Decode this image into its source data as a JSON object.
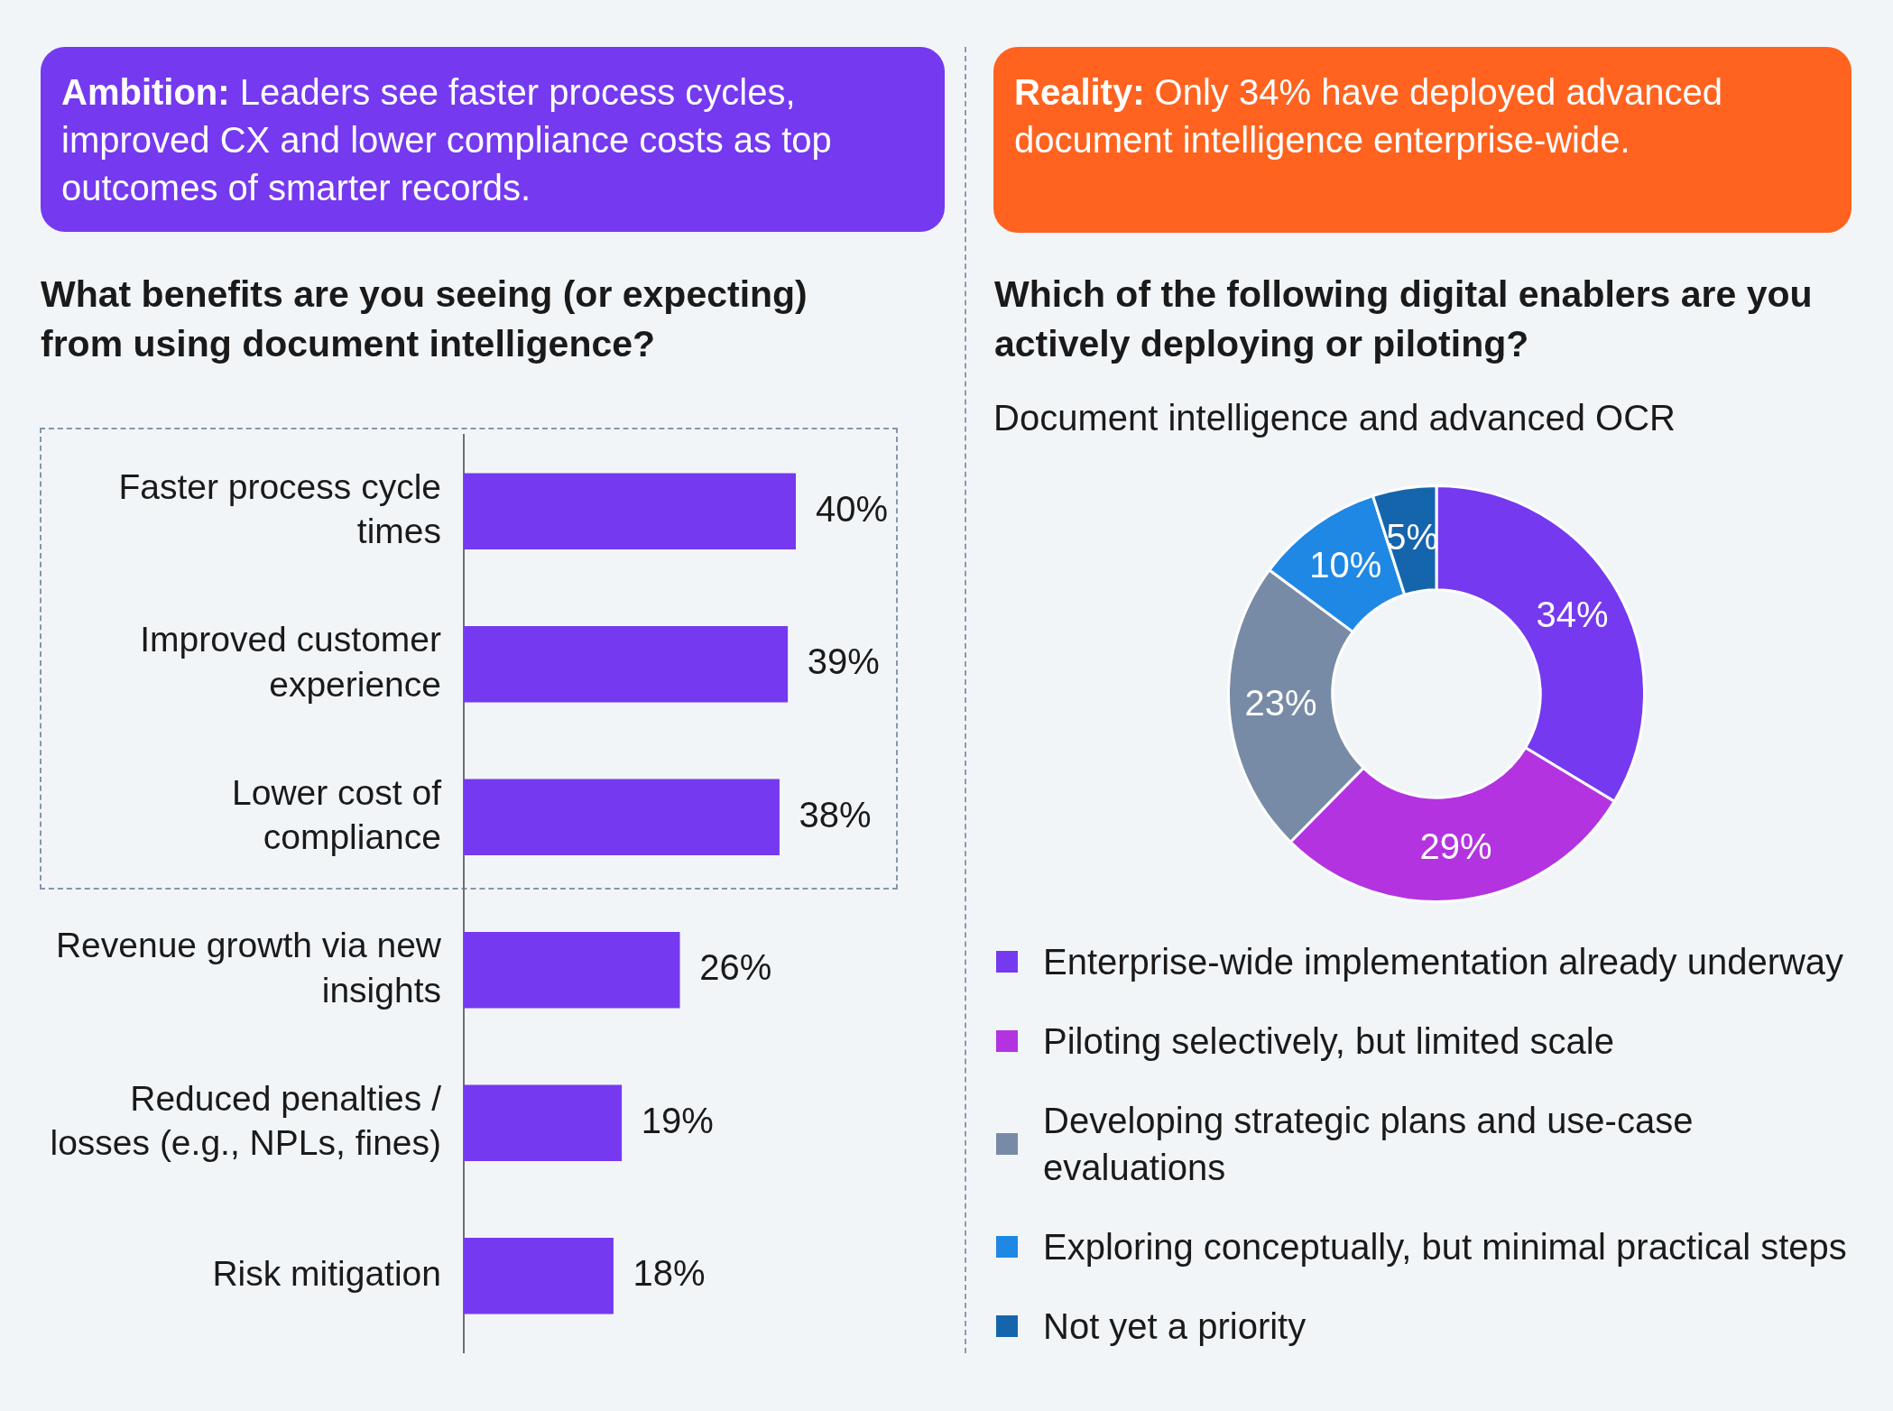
{
  "chart_data": [
    {
      "type": "other",
      "title": "Ambition: Leaders see faster process cycles, improved CX and lower compliance costs as top outcomes of smarter records.",
      "color": "#7539f0"
    },
    {
      "type": "bar",
      "orientation": "horizontal",
      "title": "What benefits are you seeing (or expecting) from using document intelligence?",
      "categories": [
        "Faster process cycle times",
        "Improved customer experience",
        "Lower cost of compliance",
        "Revenue growth via new insights",
        "Reduced penalties / losses (e.g., NPLs, fines)",
        "Risk mitigation"
      ],
      "values": [
        40,
        39,
        38,
        26,
        19,
        18
      ],
      "value_labels": [
        "40%",
        "39%",
        "38%",
        "26%",
        "19%",
        "18%"
      ],
      "color": "#7539f0",
      "tick_labels": "y",
      "grid": false,
      "legend": false
    },
    {
      "type": "other",
      "title": "Reality: Only 34% have deployed advanced document intelligence enterprise-wide.",
      "color": "#ff631f"
    },
    {
      "type": "donut",
      "title": "Which of the following digital enablers are you actively deploying or piloting?",
      "subtitle": "Document intelligence and advanced OCR",
      "categories": [
        "Enterprise-wide implementation already underway",
        "Piloting selectively, but limited scale",
        "Developing strategic plans and use-case evaluations",
        "Exploring conceptually, but minimal practical steps",
        "Not yet a priority"
      ],
      "values": [
        34,
        29,
        23,
        10,
        5
      ],
      "value_labels": [
        "34%",
        "29%",
        "23%",
        "10%",
        "5%"
      ],
      "colors": [
        "#7539f0",
        "#b333e0",
        "#788ba6",
        "#1f88e5",
        "#1565ad"
      ],
      "legend": "bottom"
    }
  ]
}
